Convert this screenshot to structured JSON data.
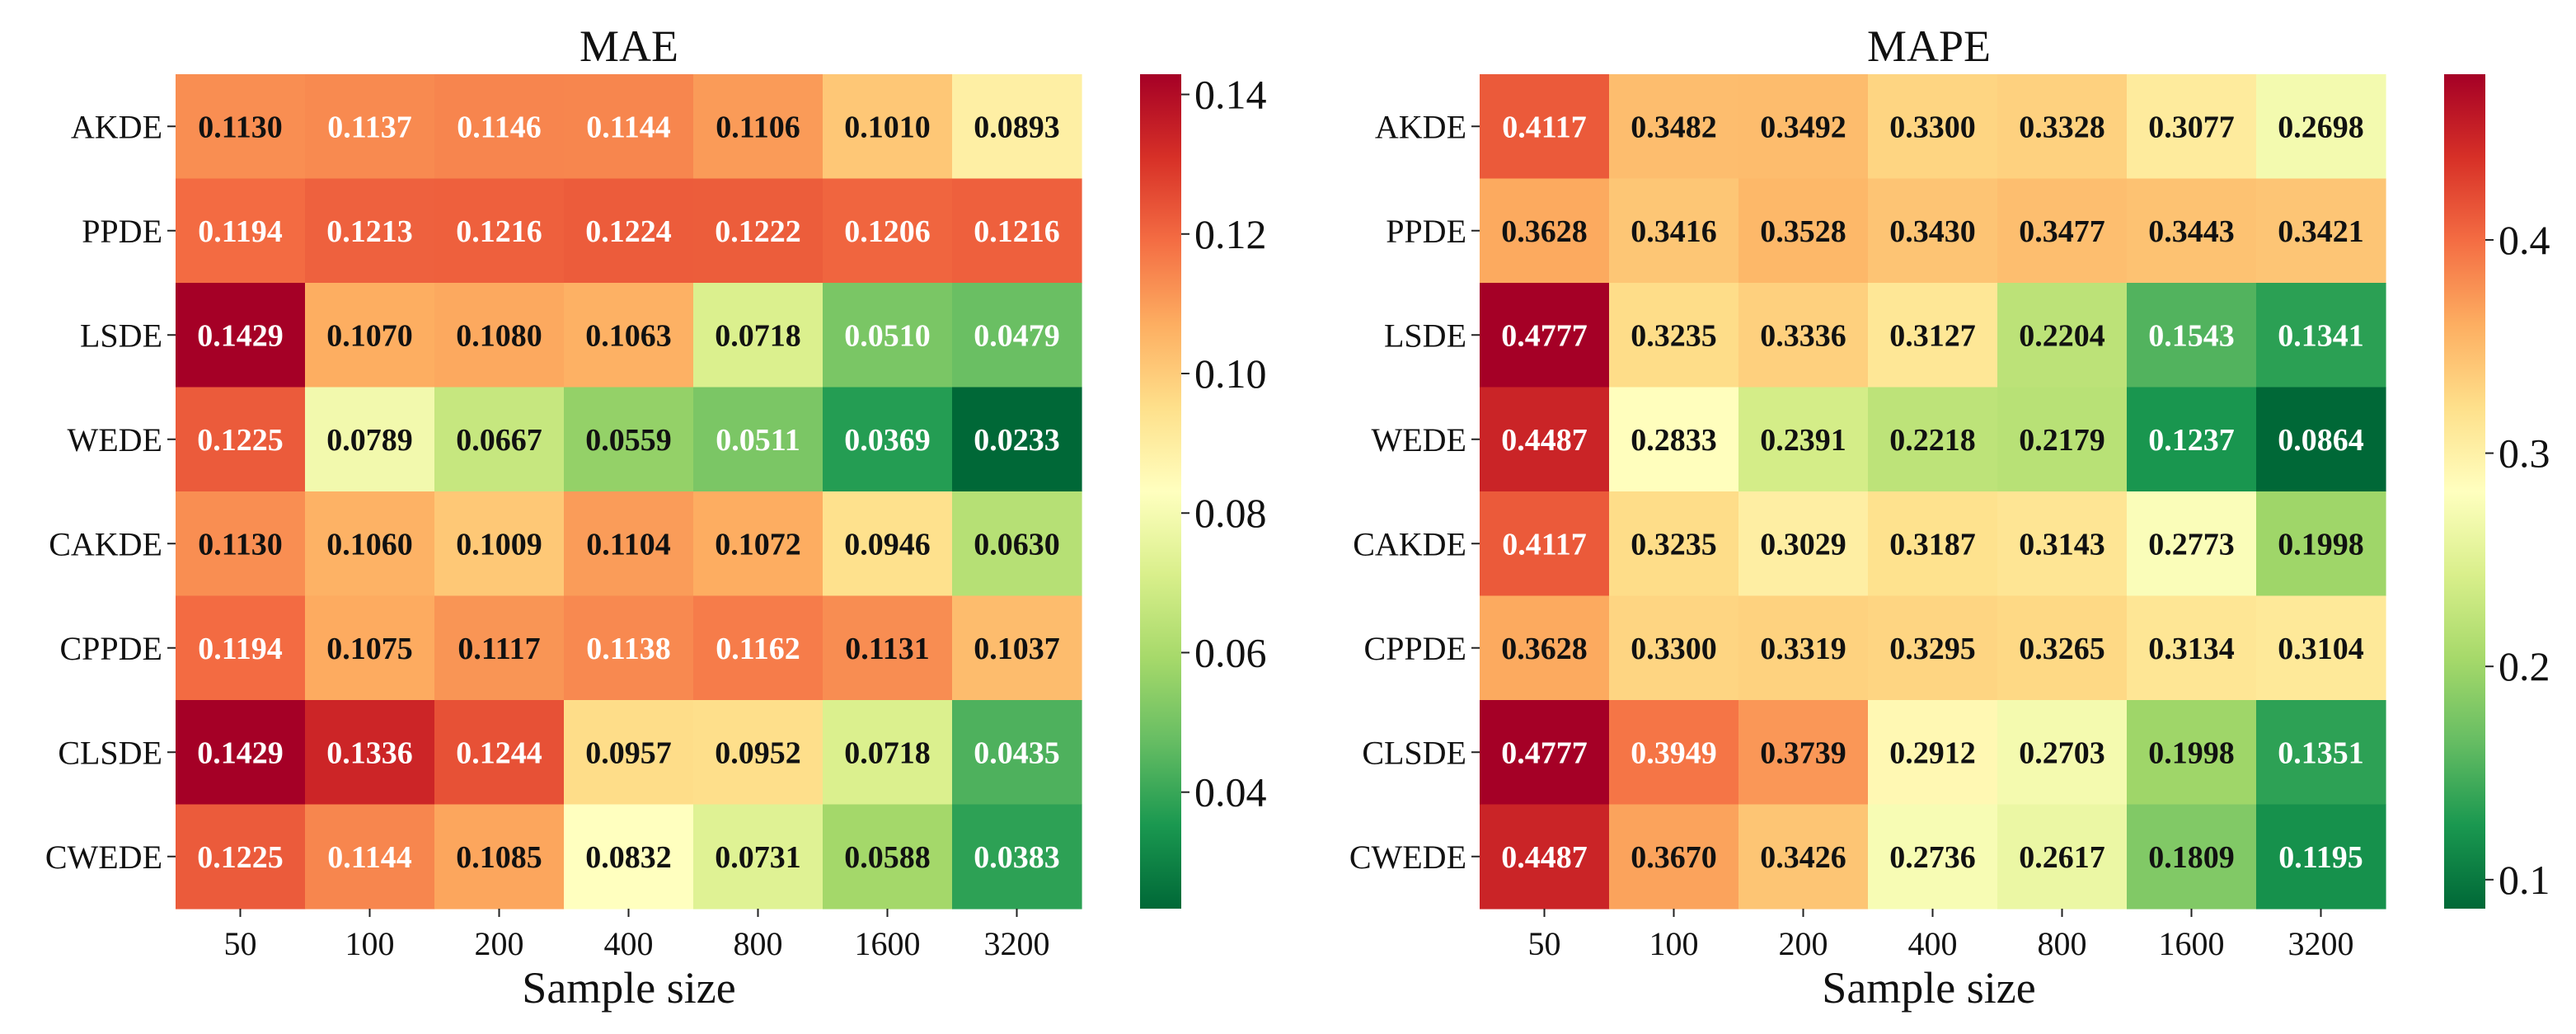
{
  "chart_data": [
    {
      "type": "heatmap",
      "title": "MAE",
      "xlabel": "Sample size",
      "ylabel": "",
      "x_categories": [
        "50",
        "100",
        "200",
        "400",
        "800",
        "1600",
        "3200"
      ],
      "y_categories": [
        "AKDE",
        "PPDE",
        "LSDE",
        "WEDE",
        "CAKDE",
        "CPPDE",
        "CLSDE",
        "CWEDE"
      ],
      "values": [
        [
          0.113,
          0.1137,
          0.1146,
          0.1144,
          0.1106,
          0.101,
          0.0893
        ],
        [
          0.1194,
          0.1213,
          0.1216,
          0.1224,
          0.1222,
          0.1206,
          0.1216
        ],
        [
          0.1429,
          0.107,
          0.108,
          0.1063,
          0.0718,
          0.051,
          0.0479
        ],
        [
          0.1225,
          0.0789,
          0.0667,
          0.0559,
          0.0511,
          0.0369,
          0.0233
        ],
        [
          0.113,
          0.106,
          0.1009,
          0.1104,
          0.1072,
          0.0946,
          0.063
        ],
        [
          0.1194,
          0.1075,
          0.1117,
          0.1138,
          0.1162,
          0.1131,
          0.1037
        ],
        [
          0.1429,
          0.1336,
          0.1244,
          0.0957,
          0.0952,
          0.0718,
          0.0435
        ],
        [
          0.1225,
          0.1144,
          0.1085,
          0.0832,
          0.0731,
          0.0588,
          0.0383
        ]
      ],
      "labels": [
        [
          "0.1130",
          "0.1137",
          "0.1146",
          "0.1144",
          "0.1106",
          "0.1010",
          "0.0893"
        ],
        [
          "0.1194",
          "0.1213",
          "0.1216",
          "0.1224",
          "0.1222",
          "0.1206",
          "0.1216"
        ],
        [
          "0.1429",
          "0.1070",
          "0.1080",
          "0.1063",
          "0.0718",
          "0.0510",
          "0.0479"
        ],
        [
          "0.1225",
          "0.0789",
          "0.0667",
          "0.0559",
          "0.0511",
          "0.0369",
          "0.0233"
        ],
        [
          "0.1130",
          "0.1060",
          "0.1009",
          "0.1104",
          "0.1072",
          "0.0946",
          "0.0630"
        ],
        [
          "0.1194",
          "0.1075",
          "0.1117",
          "0.1138",
          "0.1162",
          "0.1131",
          "0.1037"
        ],
        [
          "0.1429",
          "0.1336",
          "0.1244",
          "0.0957",
          "0.0952",
          "0.0718",
          "0.0435"
        ],
        [
          "0.1225",
          "0.1144",
          "0.1085",
          "0.0832",
          "0.0731",
          "0.0588",
          "0.0383"
        ]
      ],
      "vmin": 0.0233,
      "vmax": 0.1429,
      "colormap": "RdYlGn_r",
      "colorbar_ticks": [
        0.04,
        0.06,
        0.08,
        0.1,
        0.12,
        0.14
      ],
      "colorbar_tick_labels": [
        "0.04",
        "0.06",
        "0.08",
        "0.10",
        "0.12",
        "0.14"
      ]
    },
    {
      "type": "heatmap",
      "title": "MAPE",
      "xlabel": "Sample size",
      "ylabel": "",
      "x_categories": [
        "50",
        "100",
        "200",
        "400",
        "800",
        "1600",
        "3200"
      ],
      "y_categories": [
        "AKDE",
        "PPDE",
        "LSDE",
        "WEDE",
        "CAKDE",
        "CPPDE",
        "CLSDE",
        "CWEDE"
      ],
      "values": [
        [
          0.4117,
          0.3482,
          0.3492,
          0.33,
          0.3328,
          0.3077,
          0.2698
        ],
        [
          0.3628,
          0.3416,
          0.3528,
          0.343,
          0.3477,
          0.3443,
          0.3421
        ],
        [
          0.4777,
          0.3235,
          0.3336,
          0.3127,
          0.2204,
          0.1543,
          0.1341
        ],
        [
          0.4487,
          0.2833,
          0.2391,
          0.2218,
          0.2179,
          0.1237,
          0.0864
        ],
        [
          0.4117,
          0.3235,
          0.3029,
          0.3187,
          0.3143,
          0.2773,
          0.1998
        ],
        [
          0.3628,
          0.33,
          0.3319,
          0.3295,
          0.3265,
          0.3134,
          0.3104
        ],
        [
          0.4777,
          0.3949,
          0.3739,
          0.2912,
          0.2703,
          0.1998,
          0.1351
        ],
        [
          0.4487,
          0.367,
          0.3426,
          0.2736,
          0.2617,
          0.1809,
          0.1195
        ]
      ],
      "labels": [
        [
          "0.4117",
          "0.3482",
          "0.3492",
          "0.3300",
          "0.3328",
          "0.3077",
          "0.2698"
        ],
        [
          "0.3628",
          "0.3416",
          "0.3528",
          "0.3430",
          "0.3477",
          "0.3443",
          "0.3421"
        ],
        [
          "0.4777",
          "0.3235",
          "0.3336",
          "0.3127",
          "0.2204",
          "0.1543",
          "0.1341"
        ],
        [
          "0.4487",
          "0.2833",
          "0.2391",
          "0.2218",
          "0.2179",
          "0.1237",
          "0.0864"
        ],
        [
          "0.4117",
          "0.3235",
          "0.3029",
          "0.3187",
          "0.3143",
          "0.2773",
          "0.1998"
        ],
        [
          "0.3628",
          "0.3300",
          "0.3319",
          "0.3295",
          "0.3265",
          "0.3134",
          "0.3104"
        ],
        [
          "0.4777",
          "0.3949",
          "0.3739",
          "0.2912",
          "0.2703",
          "0.1998",
          "0.1351"
        ],
        [
          "0.4487",
          "0.3670",
          "0.3426",
          "0.2736",
          "0.2617",
          "0.1809",
          "0.1195"
        ]
      ],
      "vmin": 0.0864,
      "vmax": 0.4777,
      "colormap": "RdYlGn_r",
      "colorbar_ticks": [
        0.1,
        0.2,
        0.3,
        0.4
      ],
      "colorbar_tick_labels": [
        "0.1",
        "0.2",
        "0.3",
        "0.4"
      ]
    }
  ]
}
